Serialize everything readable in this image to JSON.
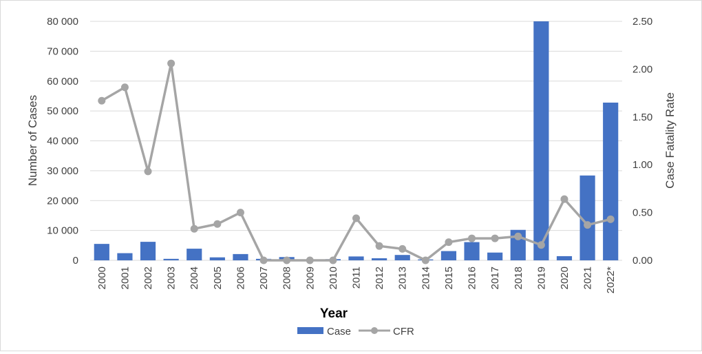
{
  "chart_data": {
    "type": "bar+line",
    "xlabel": "Year",
    "ylabel": "Number of Cases",
    "y2label": "Case Fatality Rate",
    "ylim": [
      0,
      80000
    ],
    "y2lim": [
      0,
      2.5
    ],
    "y_ticks": [
      "0",
      "10 000",
      "20 000",
      "30 000",
      "40 000",
      "50 000",
      "60 000",
      "70 000",
      "80 000"
    ],
    "y2_ticks": [
      "0.00",
      "0.50",
      "1.00",
      "1.50",
      "2.00",
      "2.50"
    ],
    "grid": true,
    "legend_position": "bottom",
    "categories": [
      "2000",
      "2001",
      "2002",
      "2003",
      "2004",
      "2005",
      "2006",
      "2007",
      "2008",
      "2009",
      "2010",
      "2011",
      "2012",
      "2013",
      "2014",
      "2015",
      "2016",
      "2017",
      "2018",
      "2019",
      "2020",
      "2021",
      "2022*"
    ],
    "series": [
      {
        "name": "Case",
        "type": "bar",
        "axis": "left",
        "color": "#4472c4",
        "values": [
          5500,
          2400,
          6200,
          500,
          3900,
          1000,
          2100,
          500,
          1100,
          300,
          400,
          1300,
          700,
          1800,
          300,
          3100,
          6100,
          2600,
          10200,
          80000,
          1400,
          28400,
          52800
        ]
      },
      {
        "name": "CFR",
        "type": "line",
        "axis": "right",
        "color": "#a5a5a5",
        "values": [
          1.67,
          1.81,
          0.93,
          2.06,
          0.33,
          0.38,
          0.5,
          0.0,
          0.0,
          0.0,
          0.0,
          0.44,
          0.15,
          0.12,
          0.0,
          0.19,
          0.23,
          0.23,
          0.25,
          0.16,
          0.64,
          0.37,
          0.43
        ]
      }
    ]
  }
}
